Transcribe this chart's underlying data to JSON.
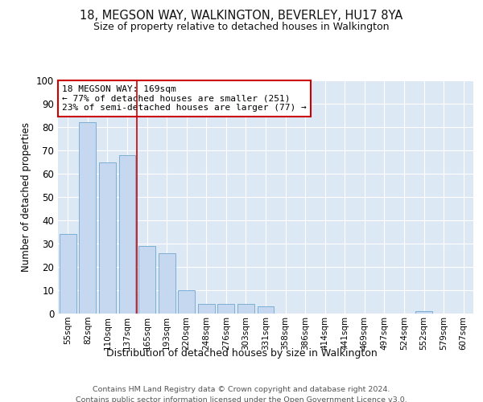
{
  "title": "18, MEGSON WAY, WALKINGTON, BEVERLEY, HU17 8YA",
  "subtitle": "Size of property relative to detached houses in Walkington",
  "xlabel": "Distribution of detached houses by size in Walkington",
  "ylabel": "Number of detached properties",
  "bin_labels": [
    "55sqm",
    "82sqm",
    "110sqm",
    "137sqm",
    "165sqm",
    "193sqm",
    "220sqm",
    "248sqm",
    "276sqm",
    "303sqm",
    "331sqm",
    "358sqm",
    "386sqm",
    "414sqm",
    "441sqm",
    "469sqm",
    "497sqm",
    "524sqm",
    "552sqm",
    "579sqm",
    "607sqm"
  ],
  "bar_values": [
    34,
    82,
    65,
    68,
    29,
    26,
    10,
    4,
    4,
    4,
    3,
    0,
    0,
    0,
    0,
    0,
    0,
    0,
    1,
    0,
    0
  ],
  "bar_color": "#c5d8f0",
  "bar_edgecolor": "#7bafd4",
  "red_line_bin_index": 4,
  "annotation_text": "18 MEGSON WAY: 169sqm\n← 77% of detached houses are smaller (251)\n23% of semi-detached houses are larger (77) →",
  "annotation_box_color": "#ffffff",
  "annotation_border_color": "#cc0000",
  "ylim": [
    0,
    100
  ],
  "yticks": [
    0,
    10,
    20,
    30,
    40,
    50,
    60,
    70,
    80,
    90,
    100
  ],
  "bg_color": "#dde8f5",
  "footer_line1": "Contains HM Land Registry data © Crown copyright and database right 2024.",
  "footer_line2": "Contains public sector information licensed under the Open Government Licence v3.0."
}
